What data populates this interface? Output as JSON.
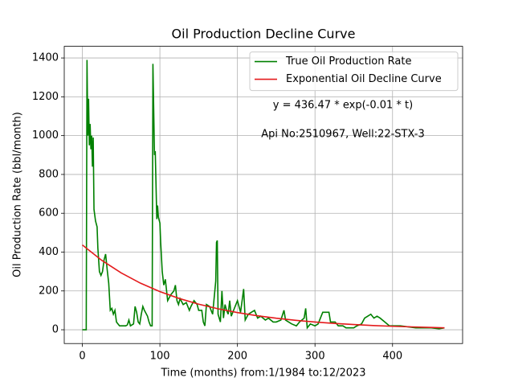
{
  "chart_data": {
    "type": "line",
    "title": "Oil Production Decline Curve",
    "xlabel": "Time (months) from:1/1984 to:12/2023",
    "ylabel": "Oil Production Rate (bbl/month)",
    "annotations": [
      "y = 436.47 * exp(-0.01 * t)",
      "Api No:2510967, Well:22-STX-3"
    ],
    "xlim": [
      -23.35,
      490.35
    ],
    "ylim": [
      -71,
      1460
    ],
    "xticks": [
      0,
      100,
      200,
      300,
      400
    ],
    "yticks": [
      0,
      200,
      400,
      600,
      800,
      1000,
      1200,
      1400
    ],
    "grid": true,
    "legend": "upper right",
    "series": [
      {
        "name": "True Oil Production Rate",
        "color": "#008000",
        "x": [
          0,
          3,
          5,
          6,
          7,
          8,
          9,
          10,
          11,
          12,
          13,
          14,
          15,
          17,
          19,
          20,
          22,
          24,
          26,
          28,
          30,
          32,
          34,
          36,
          38,
          40,
          42,
          44,
          46,
          48,
          52,
          56,
          58,
          60,
          62,
          66,
          68,
          70,
          72,
          74,
          76,
          78,
          80,
          84,
          86,
          88,
          90,
          91,
          93,
          94,
          96,
          97,
          98,
          100,
          101,
          103,
          105,
          107,
          110,
          114,
          118,
          120,
          122,
          124,
          126,
          130,
          134,
          138,
          140,
          144,
          148,
          150,
          154,
          156,
          158,
          160,
          164,
          168,
          172,
          173,
          174,
          175,
          178,
          180,
          182,
          184,
          186,
          188,
          190,
          192,
          196,
          200,
          204,
          208,
          210,
          214,
          218,
          222,
          226,
          230,
          236,
          240,
          246,
          250,
          256,
          260,
          262,
          266,
          270,
          276,
          280,
          286,
          288,
          290,
          294,
          300,
          304,
          310,
          318,
          320,
          326,
          330,
          336,
          340,
          346,
          350,
          354,
          360,
          364,
          368,
          372,
          376,
          380,
          384,
          390,
          396,
          400,
          410,
          420,
          430,
          440,
          450,
          460,
          467
        ],
        "values": [
          0,
          0,
          0,
          1390,
          1000,
          1190,
          950,
          1060,
          930,
          1000,
          840,
          990,
          620,
          560,
          530,
          420,
          300,
          280,
          300,
          360,
          390,
          310,
          240,
          100,
          110,
          80,
          100,
          40,
          30,
          20,
          20,
          20,
          25,
          50,
          20,
          30,
          120,
          90,
          40,
          30,
          80,
          120,
          100,
          70,
          40,
          20,
          20,
          1370,
          900,
          920,
          570,
          640,
          580,
          550,
          450,
          300,
          230,
          260,
          150,
          180,
          200,
          230,
          150,
          130,
          160,
          130,
          140,
          100,
          120,
          150,
          130,
          100,
          100,
          40,
          20,
          130,
          120,
          80,
          250,
          450,
          460,
          80,
          40,
          200,
          60,
          130,
          100,
          80,
          150,
          70,
          110,
          150,
          90,
          210,
          50,
          80,
          90,
          100,
          60,
          70,
          50,
          60,
          40,
          40,
          50,
          100,
          50,
          40,
          30,
          20,
          40,
          60,
          110,
          10,
          30,
          20,
          30,
          90,
          90,
          40,
          40,
          20,
          20,
          10,
          10,
          10,
          20,
          30,
          60,
          70,
          80,
          60,
          70,
          60,
          40,
          20,
          20,
          20,
          15,
          10,
          10,
          10,
          5,
          10
        ]
      },
      {
        "name": "Exponential Oil Decline Curve",
        "color": "#e41a1c",
        "x": [
          0,
          25,
          50,
          75,
          100,
          125,
          150,
          175,
          200,
          225,
          250,
          275,
          300,
          325,
          350,
          375,
          400,
          425,
          450,
          467
        ],
        "values": [
          436.5,
          357.6,
          292.9,
          239.9,
          196.5,
          161.0,
          131.9,
          108.0,
          88.5,
          72.5,
          59.4,
          48.6,
          39.8,
          32.6,
          26.7,
          21.9,
          17.9,
          14.7,
          12.0,
          10.0
        ]
      }
    ]
  }
}
